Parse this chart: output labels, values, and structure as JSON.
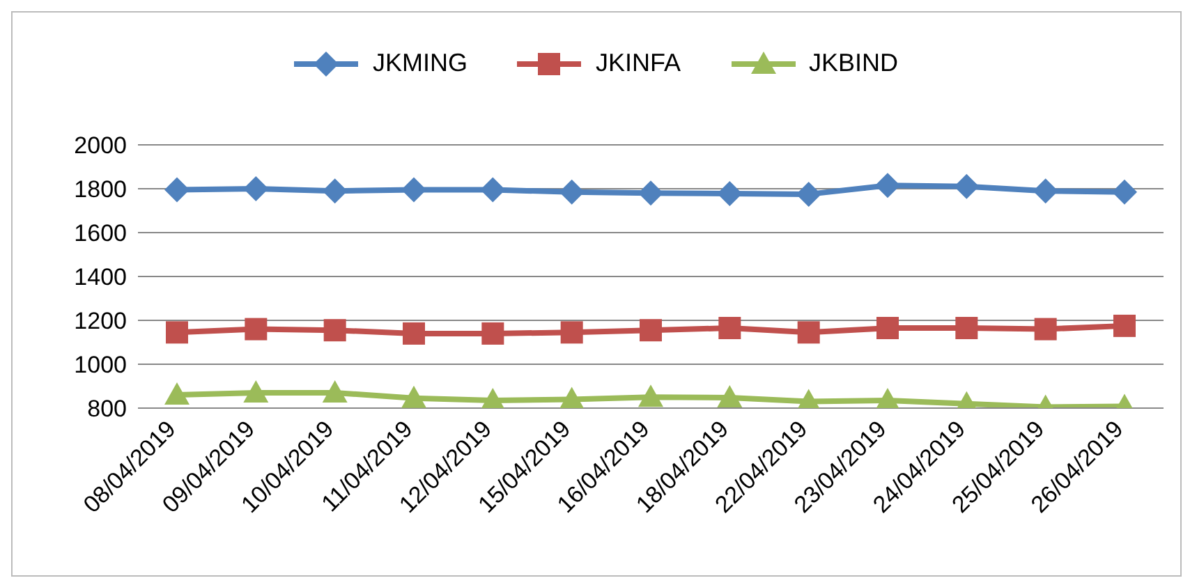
{
  "chart_data": {
    "type": "line",
    "categories": [
      "08/04/2019",
      "09/04/2019",
      "10/04/2019",
      "11/04/2019",
      "12/04/2019",
      "15/04/2019",
      "16/04/2019",
      "18/04/2019",
      "22/04/2019",
      "23/04/2019",
      "24/04/2019",
      "25/04/2019",
      "26/04/2019"
    ],
    "series": [
      {
        "name": "JKMING",
        "color": "#4f81bd",
        "marker": "diamond",
        "values": [
          1795,
          1800,
          1790,
          1795,
          1795,
          1785,
          1780,
          1778,
          1775,
          1815,
          1810,
          1790,
          1785
        ]
      },
      {
        "name": "JKINFA",
        "color": "#c0504d",
        "marker": "square",
        "values": [
          1145,
          1160,
          1155,
          1140,
          1140,
          1145,
          1155,
          1165,
          1145,
          1165,
          1165,
          1160,
          1175
        ]
      },
      {
        "name": "JKBIND",
        "color": "#9bbb59",
        "marker": "triangle",
        "values": [
          860,
          870,
          870,
          845,
          835,
          840,
          850,
          848,
          830,
          835,
          820,
          805,
          808
        ]
      }
    ],
    "ylim": [
      800,
      2000
    ],
    "yticks": [
      800,
      1000,
      1200,
      1400,
      1600,
      1800,
      2000
    ],
    "grid": "y",
    "legend": "top"
  }
}
